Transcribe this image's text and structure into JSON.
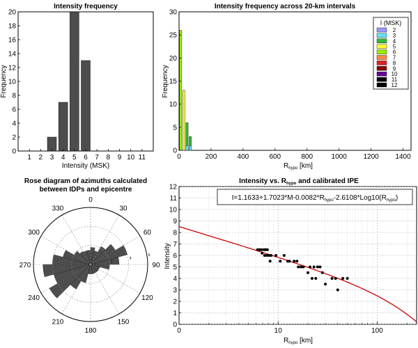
{
  "colors": {
    "bar_gray": "#4d4d4d",
    "red_curve": "#cc0000",
    "intensity_palette": [
      "#9999ff",
      "#66e0ff",
      "#33bb33",
      "#ffff33",
      "#99ee00",
      "#ff8844",
      "#dd2222",
      "#880000",
      "#660099",
      "#000000",
      "#000000"
    ]
  },
  "chart_data": [
    {
      "type": "bar",
      "title": "Intensity frequency",
      "xlabel": "Intensity (MSK)",
      "ylabel": "Frequency",
      "categories": [
        "1",
        "2",
        "3",
        "4",
        "5",
        "6",
        "7",
        "8",
        "9",
        "10",
        "11"
      ],
      "values": [
        0,
        0,
        2,
        7,
        20,
        13,
        0,
        0,
        0,
        0,
        0
      ],
      "ylim": [
        0,
        20
      ],
      "yticks": [
        "0",
        "2",
        "4",
        "6",
        "8",
        "10",
        "12",
        "14",
        "16",
        "18",
        "20"
      ],
      "grid": false
    },
    {
      "type": "bar",
      "title": "Intensity frequency across 20-km intervals",
      "xlabel": "R",
      "xlabel_sub": "hypo",
      "xlabel_unit": " [km]",
      "ylabel": "Frequency",
      "xlim": [
        0,
        1450
      ],
      "ylim": [
        0,
        30
      ],
      "xticks": [
        "0",
        "200",
        "400",
        "600",
        "800",
        "1000",
        "1200",
        "1400"
      ],
      "yticks": [
        "0",
        "5",
        "10",
        "15",
        "20",
        "25",
        "30"
      ],
      "legend_title": "I (MSK)",
      "legend_position": "top-right",
      "legend_labels": [
        "2",
        "3",
        "4",
        "5",
        "6",
        "7",
        "8",
        "9",
        "10",
        "11",
        "12"
      ],
      "series": [
        {
          "name": "6",
          "x": 20,
          "value": 26
        },
        {
          "name": "5",
          "x": 40,
          "value": 13
        },
        {
          "name": "4",
          "x": 60,
          "value": 6
        },
        {
          "name": "4",
          "x": 80,
          "value": 3
        },
        {
          "name": "3",
          "x": 60,
          "value": 1
        },
        {
          "name": "3",
          "x": 80,
          "value": 1
        }
      ]
    },
    {
      "type": "rose",
      "title_lines": [
        "Rose diagram of azimuths calculated",
        "between  IDPs and epicentre"
      ],
      "angle_labels": [
        "0",
        "30",
        "60",
        "90",
        "120",
        "150",
        "180",
        "210",
        "240",
        "270",
        "300",
        "330"
      ],
      "radial_labels": [
        "2",
        "4",
        "6"
      ],
      "rmax": 6,
      "bin_width_deg": 15,
      "petals": [
        {
          "az": 7.5,
          "r": 1.8
        },
        {
          "az": 22.5,
          "r": 1.5
        },
        {
          "az": 37.5,
          "r": 2.2
        },
        {
          "az": 52.5,
          "r": 3.0
        },
        {
          "az": 67.5,
          "r": 4.0
        },
        {
          "az": 82.5,
          "r": 3.0
        },
        {
          "az": 97.5,
          "r": 2.0
        },
        {
          "az": 112.5,
          "r": 1.0
        },
        {
          "az": 127.5,
          "r": 1.0
        },
        {
          "az": 142.5,
          "r": 1.0
        },
        {
          "az": 157.5,
          "r": 1.0
        },
        {
          "az": 172.5,
          "r": 1.0
        },
        {
          "az": 187.5,
          "r": 1.0
        },
        {
          "az": 202.5,
          "r": 2.0
        },
        {
          "az": 217.5,
          "r": 3.0
        },
        {
          "az": 232.5,
          "r": 5.0
        },
        {
          "az": 247.5,
          "r": 4.0
        },
        {
          "az": 262.5,
          "r": 5.0
        },
        {
          "az": 277.5,
          "r": 4.0
        },
        {
          "az": 292.5,
          "r": 3.0
        },
        {
          "az": 307.5,
          "r": 2.0
        },
        {
          "az": 322.5,
          "r": 1.6
        },
        {
          "az": 337.5,
          "r": 1.5
        },
        {
          "az": 352.5,
          "r": 1.5
        }
      ]
    },
    {
      "type": "scatter",
      "title": "Intensity vs. R",
      "title_sub": "hypo",
      "title_tail": " and calibrated IPE",
      "equation_parts": [
        "I=1.1633+1.7023*M-0.0082*R",
        "hypo",
        "-2.6108*Log10(R",
        "hypo",
        ")"
      ],
      "xlabel": "R",
      "xlabel_sub": "hypo",
      "xlabel_unit": " [km]",
      "ylabel": "Intensity",
      "x_scale": "log",
      "xlim": [
        1,
        250
      ],
      "ylim": [
        0,
        12
      ],
      "xticks": [
        "10",
        "100"
      ],
      "yticks": [
        "0",
        "1",
        "2",
        "3",
        "4",
        "5",
        "6",
        "7",
        "8",
        "9",
        "10",
        "11",
        "12"
      ],
      "grid": true,
      "curve": {
        "intercept": 8.52,
        "linear_coef": -0.0082,
        "log_coef": -2.6108
      },
      "points": [
        [
          6.2,
          6.5
        ],
        [
          6.5,
          6.5
        ],
        [
          6.8,
          6.5
        ],
        [
          7.2,
          6.5
        ],
        [
          7.5,
          6.5
        ],
        [
          7.8,
          6.5
        ],
        [
          6.9,
          6.2
        ],
        [
          7.3,
          6.0
        ],
        [
          7.7,
          6.0
        ],
        [
          8.1,
          6.0
        ],
        [
          8.5,
          6.0
        ],
        [
          8.3,
          5.5
        ],
        [
          9.5,
          6.0
        ],
        [
          10.5,
          5.5
        ],
        [
          11.5,
          6.0
        ],
        [
          12.5,
          5.5
        ],
        [
          13.0,
          5.5
        ],
        [
          14.5,
          5.5
        ],
        [
          15.5,
          5.5
        ],
        [
          16.0,
          5.0
        ],
        [
          17.0,
          5.0
        ],
        [
          18.0,
          5.0
        ],
        [
          20.0,
          4.5
        ],
        [
          21.0,
          5.0
        ],
        [
          22.0,
          4.0
        ],
        [
          23.0,
          5.0
        ],
        [
          24.0,
          4.0
        ],
        [
          25.0,
          5.0
        ],
        [
          26.5,
          5.0
        ],
        [
          28.0,
          4.5
        ],
        [
          30.0,
          3.5
        ],
        [
          35.0,
          4.0
        ],
        [
          38.0,
          4.0
        ],
        [
          40.0,
          3.0
        ],
        [
          45.0,
          4.0
        ],
        [
          50.0,
          4.0
        ]
      ]
    }
  ]
}
